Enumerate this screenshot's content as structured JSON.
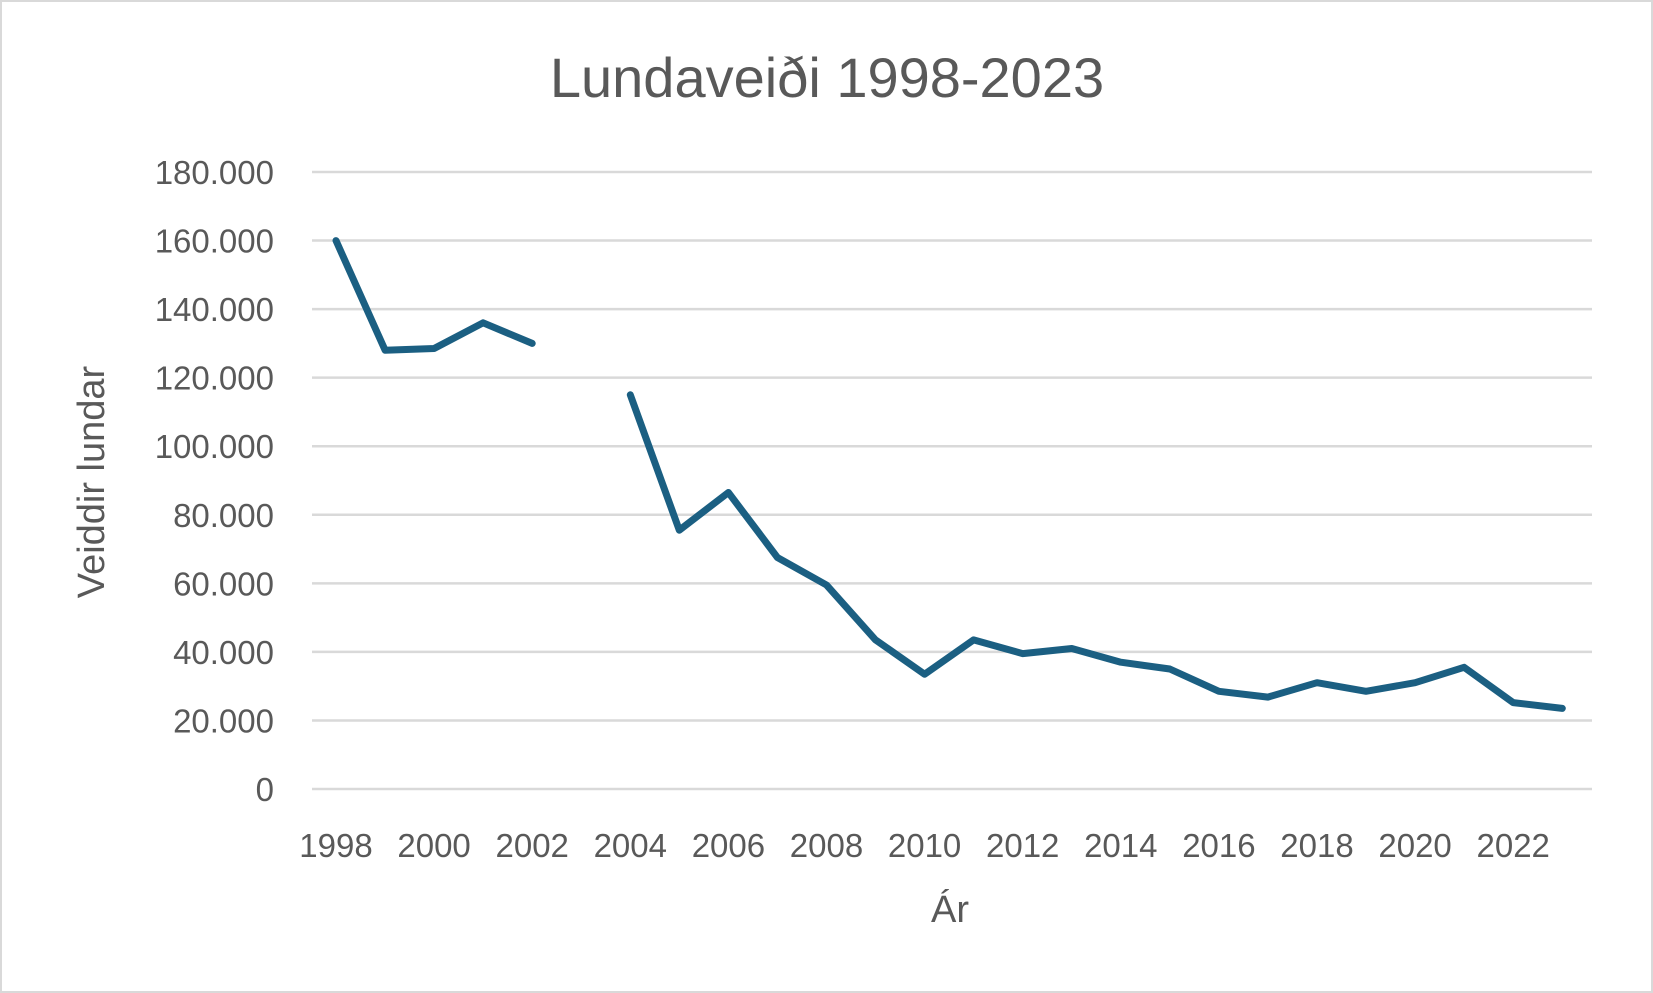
{
  "chart_data": {
    "type": "line",
    "title": "Lundaveiði 1998-2023",
    "xlabel": "Ár",
    "ylabel": "Veiddir lundar",
    "x": [
      1998,
      1999,
      2000,
      2001,
      2002,
      2003,
      2004,
      2005,
      2006,
      2007,
      2008,
      2009,
      2010,
      2011,
      2012,
      2013,
      2014,
      2015,
      2016,
      2017,
      2018,
      2019,
      2020,
      2021,
      2022,
      2023
    ],
    "xticks": [
      "1998",
      "2000",
      "2002",
      "2004",
      "2006",
      "2008",
      "2010",
      "2012",
      "2014",
      "2016",
      "2018",
      "2020",
      "2022"
    ],
    "yticks": [
      "0",
      "20.000",
      "40.000",
      "60.000",
      "80.000",
      "100.000",
      "120.000",
      "140.000",
      "160.000",
      "180.000"
    ],
    "ylim": [
      0,
      180000
    ],
    "grid": true,
    "series": [
      {
        "values": [
          160000,
          128000,
          128500,
          136000,
          130000,
          null,
          115000,
          75500,
          86500,
          67500,
          59500,
          43500,
          33500,
          43500,
          39500,
          41000,
          37000,
          35000,
          28500,
          26800,
          31000,
          28500,
          31000,
          35500,
          25200,
          23500
        ],
        "color": "#1b5f82"
      }
    ]
  }
}
